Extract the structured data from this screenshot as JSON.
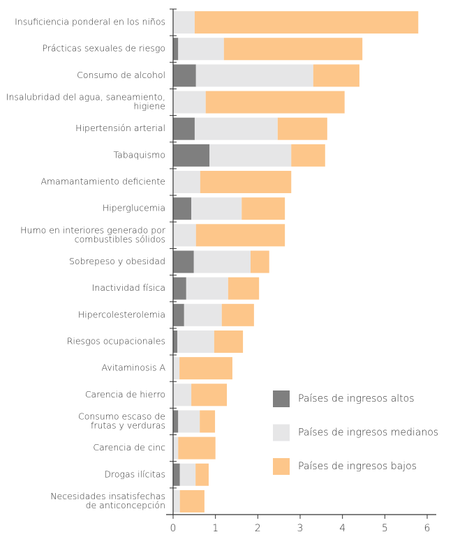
{
  "chart_data": {
    "type": "bar",
    "orientation": "horizontal",
    "stacked": true,
    "categories": [
      [
        "Insuficiencia ponderal en los niños"
      ],
      [
        "Prácticas sexuales de riesgo"
      ],
      [
        "Consumo de alcohol"
      ],
      [
        "Insalubridad del agua, saneamiento,",
        "higiene"
      ],
      [
        "Hipertensión arterial"
      ],
      [
        "Tabaquismo"
      ],
      [
        "Amamantamiento deficiente"
      ],
      [
        "Hiperglucemia"
      ],
      [
        "Humo en interiores generado por",
        "combustibles sólidos"
      ],
      [
        "Sobrepeso y obesidad"
      ],
      [
        "Inactividad física"
      ],
      [
        "Hipercolesterolemia"
      ],
      [
        "Riesgos ocupacionales"
      ],
      [
        "Avitaminosis A"
      ],
      [
        "Carencia de hierro"
      ],
      [
        "Consumo escaso de",
        "frutas y verduras"
      ],
      [
        "Carencia de cinc"
      ],
      [
        "Drogas ilícitas"
      ],
      [
        "Necesidades insatisfechas",
        "de anticoncepción"
      ]
    ],
    "series": [
      {
        "name": "Países de ingresos altos",
        "color": "#7f7f7f",
        "values": [
          0,
          0.12,
          0.54,
          0,
          0.51,
          0.86,
          0,
          0.43,
          0,
          0.49,
          0.31,
          0.26,
          0.1,
          0,
          0,
          0.12,
          0,
          0.16,
          0
        ]
      },
      {
        "name": "Países de ingresos medianos",
        "color": "#e6e6e7",
        "values": [
          0.51,
          1.08,
          2.77,
          0.77,
          1.96,
          1.93,
          0.64,
          1.19,
          0.54,
          1.34,
          0.99,
          0.89,
          0.87,
          0.15,
          0.43,
          0.51,
          0.12,
          0.37,
          0.16
        ]
      },
      {
        "name": "Países de ingresos bajos",
        "color": "#fdc68a",
        "values": [
          5.28,
          3.27,
          1.09,
          3.28,
          1.17,
          0.8,
          2.15,
          1.02,
          2.1,
          0.44,
          0.73,
          0.76,
          0.68,
          1.25,
          0.84,
          0.36,
          0.88,
          0.31,
          0.58
        ]
      }
    ],
    "xlim": [
      0,
      6
    ],
    "xticks": [
      0,
      1,
      2,
      3,
      4,
      5,
      6
    ],
    "legend": "lower right"
  }
}
